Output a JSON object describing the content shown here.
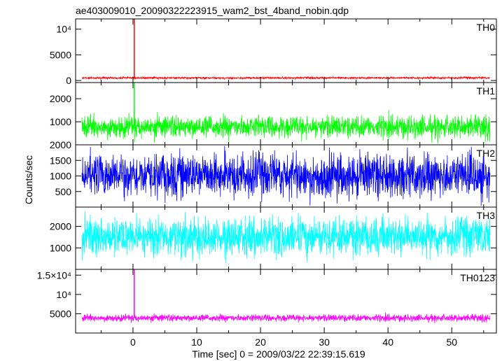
{
  "chart_data": {
    "type": "line",
    "title": "ae403009010_20090322223915_wam2_bst_4band_nobin.qdp",
    "xlabel": "Time [sec] 0 = 2009/03/22 22:39:15.619",
    "ylabel": "Counts/sec",
    "xlim": [
      -9,
      57
    ],
    "xticks": [
      0,
      10,
      20,
      30,
      40,
      50
    ],
    "grid": false,
    "panels": [
      {
        "name": "TH0",
        "color": "#ff0000",
        "ylim": [
          -400,
          12000
        ],
        "yticks": [
          {
            "v": 0,
            "label": "0"
          },
          {
            "v": 5000,
            "label": "5000"
          },
          {
            "v": 10000,
            "label": "10⁴"
          }
        ],
        "series": {
          "x_start": -8.0,
          "x_end": 56.0,
          "baseline": 500,
          "noise": 200,
          "spike_x": 0.2,
          "spike_peak": 12000
        }
      },
      {
        "name": "TH1",
        "color": "#00ff00",
        "ylim": [
          0,
          2700
        ],
        "yticks": [
          {
            "v": 1000,
            "label": "1000"
          },
          {
            "v": 2000,
            "label": "2000"
          }
        ],
        "series": {
          "x_start": -8.0,
          "x_end": 56.0,
          "baseline": 780,
          "noise": 480,
          "spike_x": 0.2,
          "spike_peak": 2700
        }
      },
      {
        "name": "TH2",
        "color": "#0000ff",
        "ylim": [
          0,
          2000
        ],
        "yticks": [
          {
            "v": 500,
            "label": "500"
          },
          {
            "v": 1000,
            "label": "1000"
          },
          {
            "v": 1500,
            "label": "1500"
          },
          {
            "v": 2000,
            "label": "2000"
          }
        ],
        "series": {
          "x_start": -8.0,
          "x_end": 56.0,
          "baseline": 1000,
          "noise": 700,
          "spike_x": null,
          "spike_peak": null
        }
      },
      {
        "name": "TH3",
        "color": "#00ffff",
        "ylim": [
          0,
          2900
        ],
        "yticks": [
          {
            "v": 1000,
            "label": "1000"
          },
          {
            "v": 2000,
            "label": "2000"
          }
        ],
        "series": {
          "x_start": -8.0,
          "x_end": 56.0,
          "baseline": 1500,
          "noise": 900,
          "spike_x": null,
          "spike_peak": null
        }
      },
      {
        "name": "TH0123",
        "color": "#ff00ff",
        "ylim": [
          0,
          16500
        ],
        "yticks": [
          {
            "v": 5000,
            "label": "5000"
          },
          {
            "v": 10000,
            "label": "10⁴"
          },
          {
            "v": 15000,
            "label": "1.5×10⁴"
          }
        ],
        "series": {
          "x_start": -8.0,
          "x_end": 56.0,
          "baseline": 3900,
          "noise": 900,
          "spike_x": 0.2,
          "spike_peak": 16500
        }
      }
    ]
  }
}
